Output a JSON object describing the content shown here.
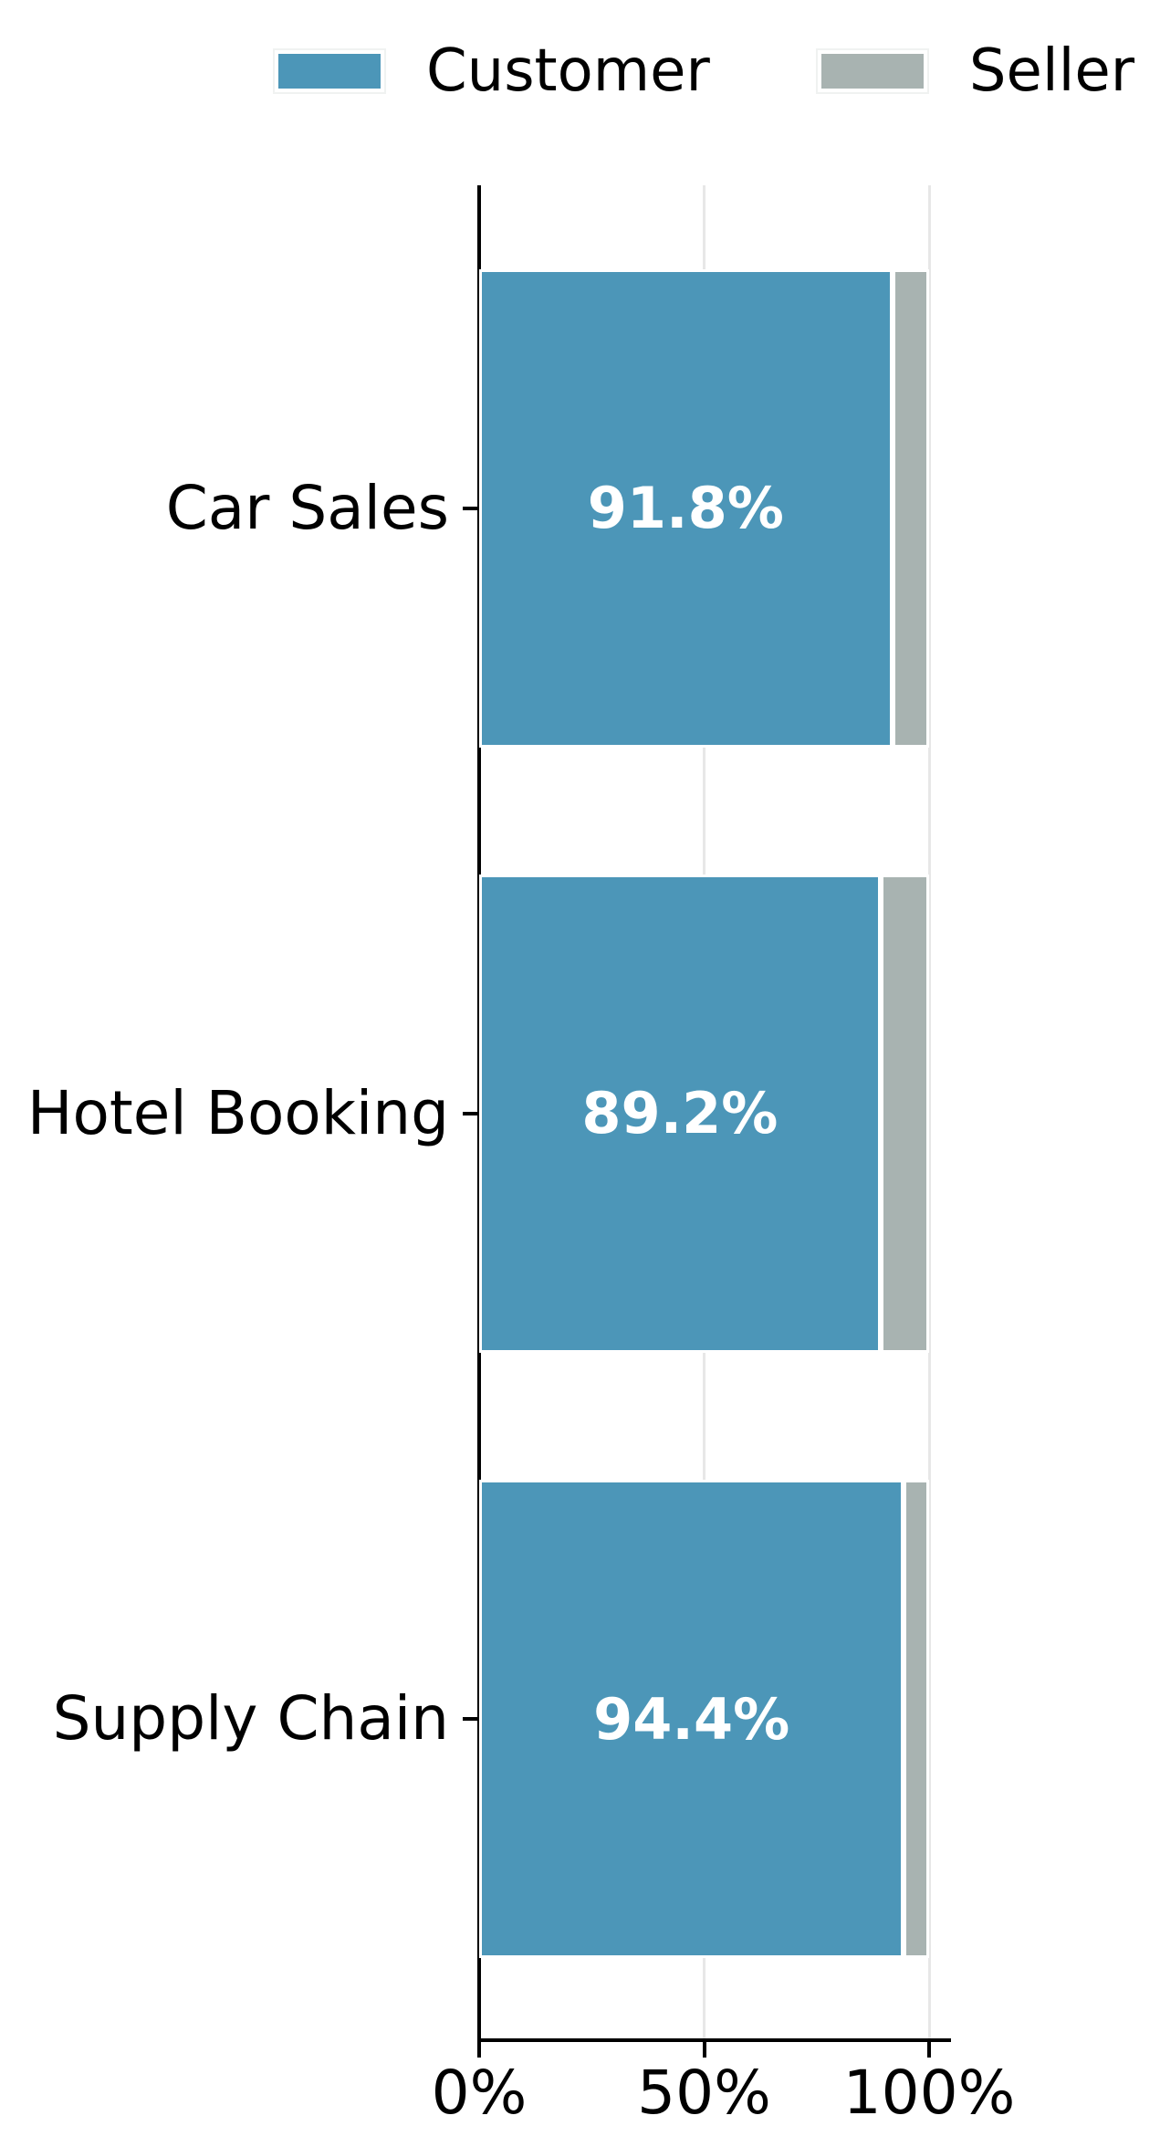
{
  "legend": {
    "items": [
      {
        "label": "Customer",
        "color": "#4c96b8"
      },
      {
        "label": "Seller",
        "color": "#a8b3b1"
      }
    ]
  },
  "chart_data": {
    "type": "bar",
    "orientation": "horizontal",
    "stacked": true,
    "title": "",
    "xlabel": "",
    "ylabel": "",
    "categories": [
      "Car Sales",
      "Hotel Booking",
      "Supply Chain"
    ],
    "series": [
      {
        "name": "Customer",
        "color": "#4c96b8",
        "values": [
          91.8,
          89.2,
          94.4
        ],
        "bar_labels": [
          "91.8%",
          "89.2%",
          "94.4%"
        ],
        "bar_label_color": "#ffffff"
      },
      {
        "name": "Seller",
        "color": "#a8b3b1",
        "values": [
          8.2,
          10.8,
          5.6
        ],
        "bar_labels": [
          "",
          "",
          ""
        ]
      }
    ],
    "x_ticks": [
      "0%",
      "50%",
      "100%"
    ],
    "x_tick_values": [
      0,
      50,
      100
    ],
    "xlim": [
      0,
      105
    ],
    "grid": "vertical",
    "gridline_color": "#e7e7e7",
    "legend_position": "top center",
    "spine_color": "#000000",
    "background_color": "#ffffff"
  }
}
